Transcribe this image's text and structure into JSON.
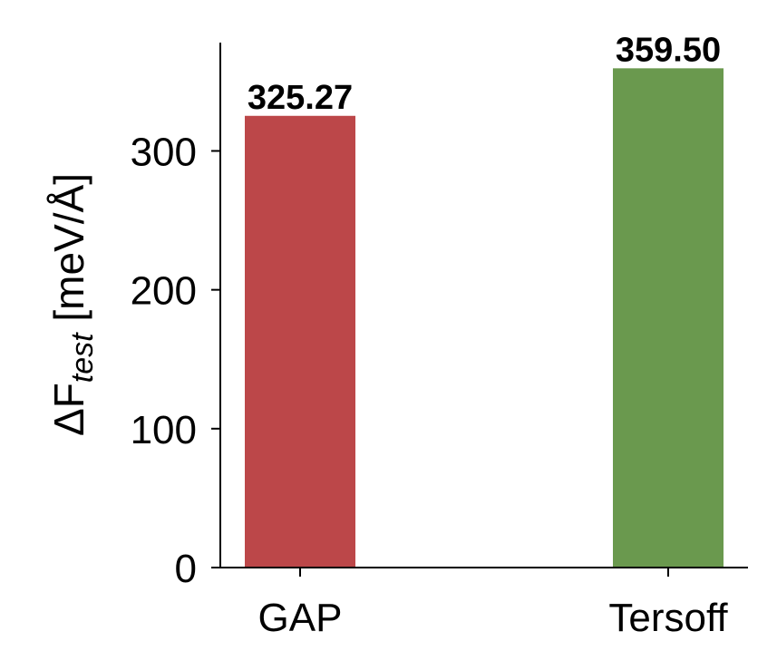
{
  "chart_data": {
    "type": "bar",
    "ylabel": [
      "ΔF",
      "test",
      "[meV/Å]"
    ],
    "categories": [
      "GAP",
      "Tersoff"
    ],
    "values": [
      325.27,
      359.5
    ],
    "value_labels": [
      "325.27",
      "359.50"
    ],
    "colors": [
      "#bc4749",
      "#6a994e"
    ],
    "ylim": [
      0,
      378
    ],
    "yticks": [
      0,
      100,
      200,
      300
    ],
    "grid": false
  }
}
